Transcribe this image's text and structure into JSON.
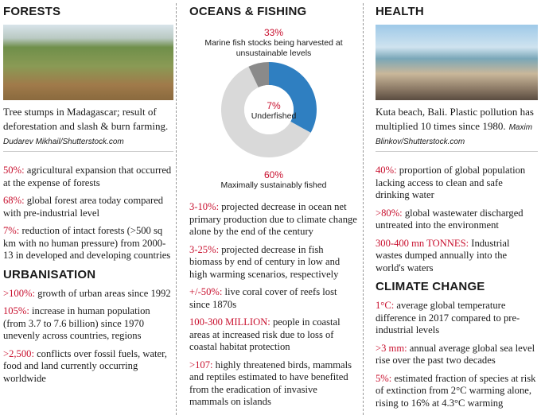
{
  "columns": [
    {
      "sections": [
        {
          "heading": "FORESTS",
          "caption": "Tree stumps in Madagascar; result of deforestation and slash & burn farming.",
          "credit": "Dudarev Mikhail/Shutterstock.com",
          "facts": [
            {
              "lead": "50%:",
              "text": "agricultural expansion that occurred at the expense of forests"
            },
            {
              "lead": "68%:",
              "text": "global forest area today compared with pre-industrial level"
            },
            {
              "lead": "7%:",
              "text": "reduction of intact forests (>500 sq km with no human pressure) from 2000-13 in developed and developing countries"
            }
          ]
        },
        {
          "heading": "URBANISATION",
          "facts": [
            {
              "lead": ">100%:",
              "text": "growth of urban areas since 1992"
            },
            {
              "lead": "105%:",
              "text": "increase in human population (from 3.7 to 7.6 billion) since 1970 unevenly across countries, regions"
            },
            {
              "lead": ">2,500:",
              "text": "conflicts over fossil fuels, water, food and land currently occurring worldwide"
            }
          ]
        }
      ]
    },
    {
      "sections": [
        {
          "heading": "OCEANS & FISHING",
          "facts": [
            {
              "lead": "3-10%:",
              "text": "projected decrease in ocean net primary production due to climate change alone by the end of the century"
            },
            {
              "lead": "3-25%:",
              "text": "projected decrease in fish biomass by end of century in low and high warming scenarios, respectively"
            },
            {
              "lead": "+/-50%:",
              "text": "live coral cover of reefs lost since 1870s"
            },
            {
              "lead": "100-300 MILLION:",
              "text": "people in coastal areas at increased risk due to loss of coastal habitat protection"
            },
            {
              "lead": ">107:",
              "text": "highly threatened birds, mammals and reptiles estimated to have benefited from the eradication of invasive mammals on islands"
            }
          ]
        }
      ]
    },
    {
      "sections": [
        {
          "heading": "HEALTH",
          "caption": "Kuta beach, Bali. Plastic pollution has multiplied 10 times since 1980.",
          "credit": "Maxim Blinkov/Shutterstock.com",
          "facts": [
            {
              "lead": "40%:",
              "text": "proportion of global population lacking access to clean and safe drinking water"
            },
            {
              "lead": ">80%:",
              "text": "global wastewater discharged untreated into the environment"
            },
            {
              "lead": "300-400 mn TONNES:",
              "text": "Industrial wastes dumped annually into the world's waters"
            }
          ]
        },
        {
          "heading": "CLIMATE CHANGE",
          "facts": [
            {
              "lead": "1°C:",
              "text": "average global temperature difference in 2017 compared to pre-industrial levels"
            },
            {
              "lead": ">3 mm:",
              "text": "annual average global sea level rise over the past two decades"
            },
            {
              "lead": "5%:",
              "text": "estimated fraction of species at risk of extinction from 2°C warming alone, rising to 16% at 4.3°C warming"
            }
          ]
        }
      ]
    }
  ],
  "chart_data": {
    "type": "donut",
    "categories": [
      "Marine fish stocks being harvested at unsustainable levels",
      "Maximally sustainably fished",
      "Underfished"
    ],
    "values": [
      33,
      60,
      7
    ],
    "value_labels": [
      "33%",
      "60%",
      "7%"
    ],
    "colors": [
      "#2f7fc1",
      "#d9d9d9",
      "#8a8a8a"
    ]
  }
}
